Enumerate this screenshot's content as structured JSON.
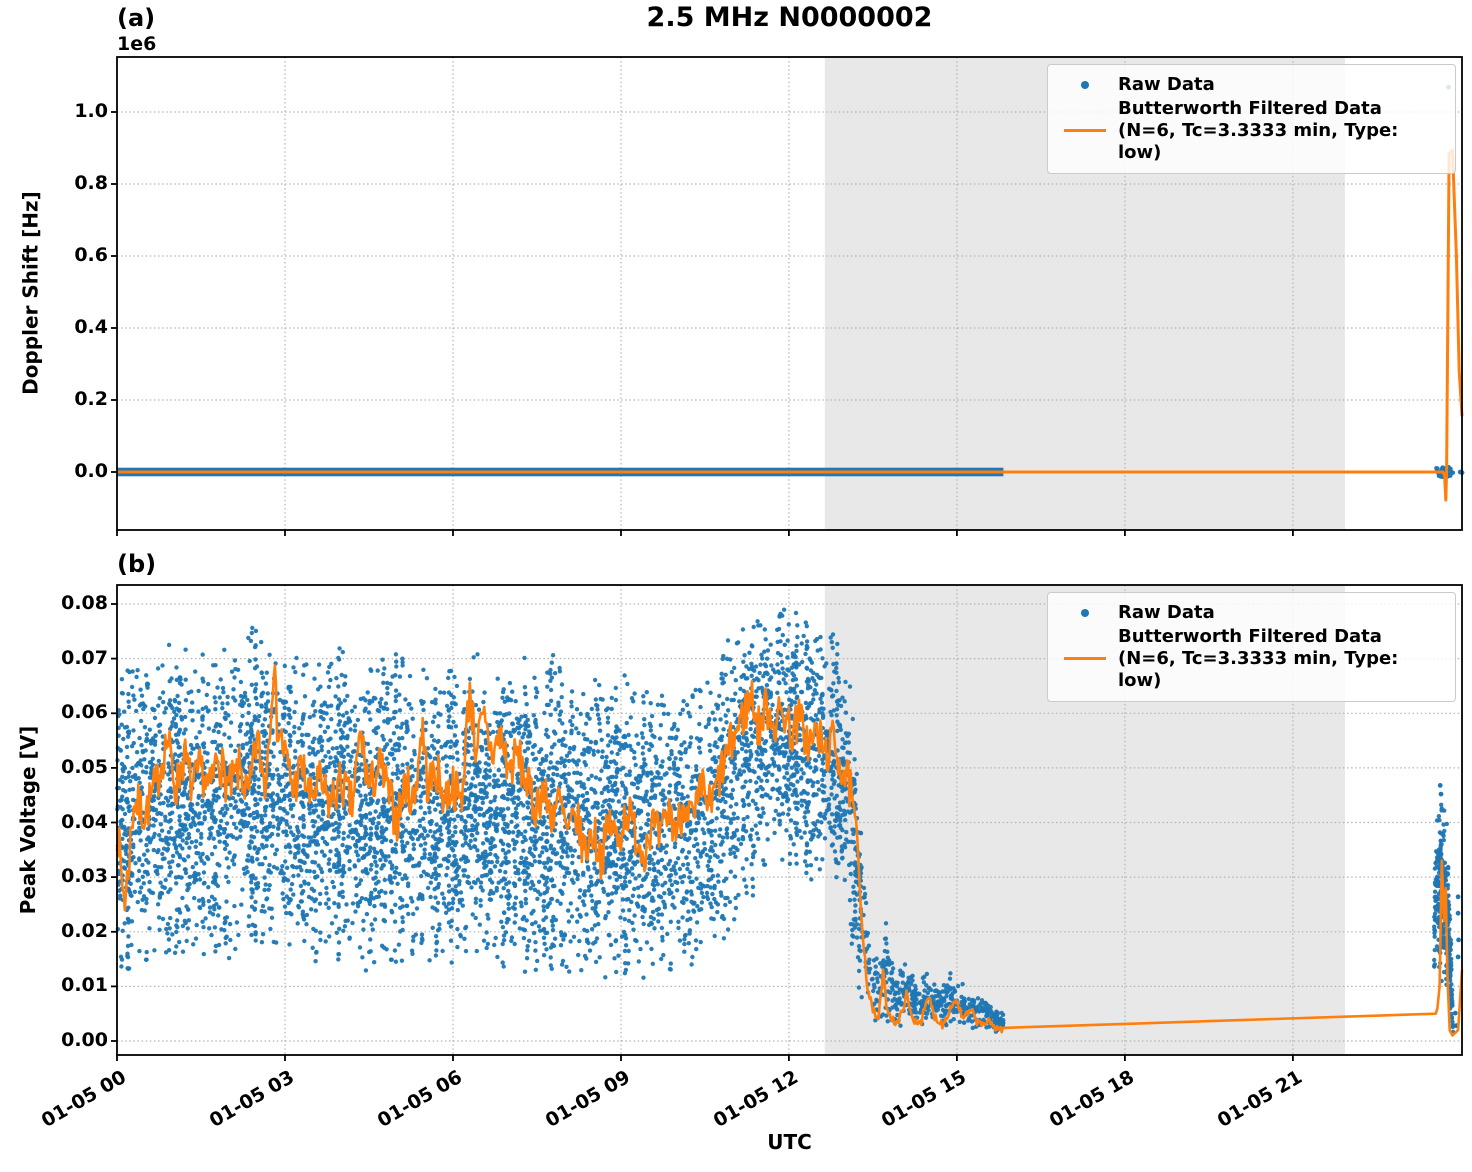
{
  "title": "2.5 MHz N0000002",
  "panel_a_tag": "(a)",
  "panel_b_tag": "(b)",
  "xlabel": "UTC",
  "legend": {
    "raw_label": "Raw Data",
    "filtered_label_line1": "Butterworth Filtered Data",
    "filtered_label_line2": "(N=6, Tc=3.3333 min, Type: low)"
  },
  "colors": {
    "raw": "#1f77b4",
    "filtered": "#ff7f0e",
    "shade": "#e8e8e8",
    "grid": "#b3b3b3",
    "spine": "#000000"
  },
  "xticks": {
    "hours": [
      0,
      3,
      6,
      9,
      12,
      15,
      18,
      21
    ],
    "labels": [
      "01-05 00",
      "01-05 03",
      "01-05 06",
      "01-05 09",
      "01-05 12",
      "01-05 15",
      "01-05 18",
      "01-05 21"
    ],
    "xlim_hours": [
      0,
      24.02
    ]
  },
  "chart_data": [
    {
      "panel": "a",
      "type": "scatter",
      "ylabel": "Doppler Shift [Hz]",
      "y_offset_label": "1e6",
      "ylim": [
        -161000,
        1153000
      ],
      "yticks": [
        0,
        200000,
        400000,
        600000,
        800000,
        1000000
      ],
      "ytick_labels": [
        "0.0",
        "0.2",
        "0.4",
        "0.6",
        "0.8",
        "1.0"
      ],
      "shaded_region_hours": [
        12.64,
        21.93
      ],
      "raw_band": {
        "h_start": 0,
        "h_end": 15.83,
        "value": 0,
        "spread": 12000
      },
      "raw_cluster": {
        "h_start": 23.56,
        "h_end": 23.86,
        "value": 0,
        "spread": 14000,
        "count": 45,
        "seed": 11
      },
      "raw_outliers": [
        [
          23.78,
          1069000
        ],
        [
          23.99,
          0
        ],
        [
          24.02,
          -2000
        ]
      ],
      "filtered_keypoints": [
        [
          0,
          0
        ],
        [
          23.68,
          0
        ],
        [
          23.71,
          -10000
        ],
        [
          23.73,
          -78000
        ],
        [
          23.745,
          0
        ],
        [
          23.79,
          885000
        ],
        [
          23.85,
          893000
        ],
        [
          23.92,
          600000
        ],
        [
          23.97,
          280000
        ],
        [
          24.02,
          155000
        ]
      ]
    },
    {
      "panel": "b",
      "type": "scatter",
      "ylabel": "Peak Voltage [V]",
      "ylim": [
        -0.0026,
        0.0835
      ],
      "yticks": [
        0.0,
        0.01,
        0.02,
        0.03,
        0.04,
        0.05,
        0.06,
        0.07,
        0.08
      ],
      "ytick_labels": [
        "0.00",
        "0.01",
        "0.02",
        "0.03",
        "0.04",
        "0.05",
        "0.06",
        "0.07",
        "0.08"
      ],
      "shaded_region_hours": [
        12.64,
        21.93
      ],
      "scatter_envelope": [
        [
          0,
          0.012,
          0.066
        ],
        [
          0.4,
          0.013,
          0.071
        ],
        [
          0.8,
          0.014,
          0.073
        ],
        [
          1.2,
          0.015,
          0.072
        ],
        [
          1.6,
          0.013,
          0.071
        ],
        [
          2.0,
          0.014,
          0.075
        ],
        [
          2.4,
          0.016,
          0.077
        ],
        [
          2.8,
          0.015,
          0.073
        ],
        [
          3.2,
          0.014,
          0.071
        ],
        [
          3.6,
          0.013,
          0.07
        ],
        [
          4.0,
          0.015,
          0.072
        ],
        [
          4.4,
          0.012,
          0.07
        ],
        [
          4.8,
          0.013,
          0.072
        ],
        [
          5.2,
          0.014,
          0.071
        ],
        [
          5.6,
          0.012,
          0.07
        ],
        [
          6.0,
          0.013,
          0.069
        ],
        [
          6.4,
          0.014,
          0.072
        ],
        [
          6.8,
          0.012,
          0.068
        ],
        [
          7.2,
          0.011,
          0.07
        ],
        [
          7.6,
          0.013,
          0.071
        ],
        [
          8.0,
          0.01,
          0.072
        ],
        [
          8.4,
          0.01,
          0.069
        ],
        [
          8.8,
          0.011,
          0.068
        ],
        [
          9.2,
          0.01,
          0.067
        ],
        [
          9.6,
          0.01,
          0.066
        ],
        [
          10.0,
          0.011,
          0.067
        ],
        [
          10.4,
          0.013,
          0.069
        ],
        [
          10.8,
          0.016,
          0.073
        ],
        [
          11.2,
          0.024,
          0.078
        ],
        [
          11.6,
          0.03,
          0.08
        ],
        [
          12.0,
          0.03,
          0.079
        ],
        [
          12.4,
          0.028,
          0.077
        ],
        [
          12.8,
          0.03,
          0.075
        ],
        [
          13.0,
          0.024,
          0.071
        ],
        [
          13.15,
          0.012,
          0.063
        ],
        [
          13.3,
          0.005,
          0.04
        ],
        [
          13.45,
          0.003,
          0.022
        ],
        [
          13.6,
          0.002,
          0.016
        ],
        [
          13.75,
          0.002,
          0.023
        ],
        [
          13.9,
          0.002,
          0.013
        ],
        [
          14.1,
          0.003,
          0.016
        ],
        [
          14.3,
          0.002,
          0.011
        ],
        [
          14.5,
          0.003,
          0.013
        ],
        [
          14.7,
          0.002,
          0.01
        ],
        [
          14.9,
          0.003,
          0.013
        ],
        [
          15.1,
          0.002,
          0.011
        ],
        [
          15.3,
          0.002,
          0.009
        ],
        [
          15.5,
          0.002,
          0.008
        ],
        [
          15.7,
          0.0015,
          0.006
        ],
        [
          15.83,
          0.0015,
          0.005
        ]
      ],
      "right_cluster_envelope": [
        [
          23.52,
          0.012,
          0.032
        ],
        [
          23.58,
          0.012,
          0.044
        ],
        [
          23.64,
          0.01,
          0.046
        ],
        [
          23.7,
          0.009,
          0.044
        ],
        [
          23.76,
          0.008,
          0.04
        ],
        [
          23.82,
          0.003,
          0.02
        ],
        [
          23.86,
          0.001,
          0.005
        ]
      ],
      "raw_outliers": [
        [
          23.63,
          0.0468
        ],
        [
          23.645,
          0.0452
        ],
        [
          23.95,
          0.0264
        ],
        [
          23.95,
          0.0234
        ],
        [
          23.96,
          0.0185
        ],
        [
          23.95,
          0.0154
        ],
        [
          23.9,
          0.0051
        ],
        [
          23.92,
          0.0028
        ]
      ],
      "scatter_counts": {
        "main": 5200,
        "bursts": 60,
        "tail": 450,
        "right": 320,
        "seed": 42
      },
      "filtered_wiggle": {
        "h_start": 0,
        "h_end": 13.1,
        "amplitude": 0.0042,
        "tail_amplitude": 0.0008,
        "seed": 7
      },
      "filtered_keypoints": [
        [
          0,
          0.04
        ],
        [
          0.08,
          0.03
        ],
        [
          0.15,
          0.0255
        ],
        [
          0.3,
          0.044
        ],
        [
          0.5,
          0.0415
        ],
        [
          0.7,
          0.047
        ],
        [
          0.9,
          0.0555
        ],
        [
          1.05,
          0.046
        ],
        [
          1.2,
          0.0525
        ],
        [
          1.35,
          0.046
        ],
        [
          1.5,
          0.05
        ],
        [
          1.65,
          0.0455
        ],
        [
          1.8,
          0.0525
        ],
        [
          2.0,
          0.046
        ],
        [
          2.2,
          0.05
        ],
        [
          2.35,
          0.044
        ],
        [
          2.5,
          0.0555
        ],
        [
          2.65,
          0.0465
        ],
        [
          2.8,
          0.07
        ],
        [
          2.85,
          0.059
        ],
        [
          3.0,
          0.0525
        ],
        [
          3.15,
          0.046
        ],
        [
          3.3,
          0.0505
        ],
        [
          3.45,
          0.044
        ],
        [
          3.6,
          0.0475
        ],
        [
          3.8,
          0.0435
        ],
        [
          4.0,
          0.0475
        ],
        [
          4.2,
          0.043
        ],
        [
          4.35,
          0.0565
        ],
        [
          4.5,
          0.046
        ],
        [
          4.7,
          0.0505
        ],
        [
          4.9,
          0.0435
        ],
        [
          5.0,
          0.04
        ],
        [
          5.15,
          0.0475
        ],
        [
          5.3,
          0.0435
        ],
        [
          5.45,
          0.058
        ],
        [
          5.55,
          0.0465
        ],
        [
          5.7,
          0.0495
        ],
        [
          5.85,
          0.0445
        ],
        [
          6.0,
          0.047
        ],
        [
          6.15,
          0.0435
        ],
        [
          6.3,
          0.065
        ],
        [
          6.4,
          0.054
        ],
        [
          6.55,
          0.0585
        ],
        [
          6.7,
          0.0525
        ],
        [
          6.85,
          0.056
        ],
        [
          7.0,
          0.0495
        ],
        [
          7.15,
          0.0525
        ],
        [
          7.3,
          0.048
        ],
        [
          7.45,
          0.0425
        ],
        [
          7.6,
          0.046
        ],
        [
          7.75,
          0.0415
        ],
        [
          7.9,
          0.044
        ],
        [
          8.05,
          0.0375
        ],
        [
          8.2,
          0.041
        ],
        [
          8.35,
          0.0345
        ],
        [
          8.5,
          0.0385
        ],
        [
          8.65,
          0.0335
        ],
        [
          8.8,
          0.04
        ],
        [
          8.95,
          0.0365
        ],
        [
          9.1,
          0.0425
        ],
        [
          9.25,
          0.0385
        ],
        [
          9.4,
          0.0345
        ],
        [
          9.55,
          0.04
        ],
        [
          9.7,
          0.0365
        ],
        [
          9.85,
          0.042
        ],
        [
          10.0,
          0.0385
        ],
        [
          10.15,
          0.0445
        ],
        [
          10.3,
          0.04
        ],
        [
          10.45,
          0.0465
        ],
        [
          10.6,
          0.0425
        ],
        [
          10.75,
          0.048
        ],
        [
          10.9,
          0.0525
        ],
        [
          11.05,
          0.0565
        ],
        [
          11.2,
          0.06
        ],
        [
          11.35,
          0.0635
        ],
        [
          11.45,
          0.057
        ],
        [
          11.6,
          0.0615
        ],
        [
          11.75,
          0.058
        ],
        [
          11.9,
          0.0605
        ],
        [
          12.05,
          0.0565
        ],
        [
          12.2,
          0.059
        ],
        [
          12.35,
          0.054
        ],
        [
          12.5,
          0.0565
        ],
        [
          12.65,
          0.0525
        ],
        [
          12.8,
          0.055
        ],
        [
          12.95,
          0.05
        ],
        [
          13.1,
          0.046
        ],
        [
          13.2,
          0.04
        ],
        [
          13.3,
          0.022
        ],
        [
          13.4,
          0.01
        ],
        [
          13.5,
          0.0055
        ],
        [
          13.6,
          0.004
        ],
        [
          13.68,
          0.0125
        ],
        [
          13.75,
          0.006
        ],
        [
          13.85,
          0.004
        ],
        [
          13.95,
          0.003
        ],
        [
          14.1,
          0.0085
        ],
        [
          14.2,
          0.004
        ],
        [
          14.35,
          0.0035
        ],
        [
          14.5,
          0.008
        ],
        [
          14.6,
          0.0045
        ],
        [
          14.75,
          0.003
        ],
        [
          14.9,
          0.0065
        ],
        [
          15.0,
          0.0075
        ],
        [
          15.1,
          0.004
        ],
        [
          15.25,
          0.0055
        ],
        [
          15.4,
          0.003
        ],
        [
          15.55,
          0.0035
        ],
        [
          15.7,
          0.0025
        ],
        [
          15.83,
          0.002
        ],
        [
          23.55,
          0.005
        ],
        [
          23.58,
          0.006
        ],
        [
          23.62,
          0.01
        ],
        [
          23.66,
          0.033
        ],
        [
          23.7,
          0.022
        ],
        [
          23.73,
          0.028
        ],
        [
          23.76,
          0.012
        ],
        [
          23.8,
          0.002
        ],
        [
          23.85,
          0.001
        ],
        [
          23.9,
          0.0015
        ],
        [
          23.95,
          0.002
        ],
        [
          24.02,
          0.013
        ]
      ]
    }
  ]
}
